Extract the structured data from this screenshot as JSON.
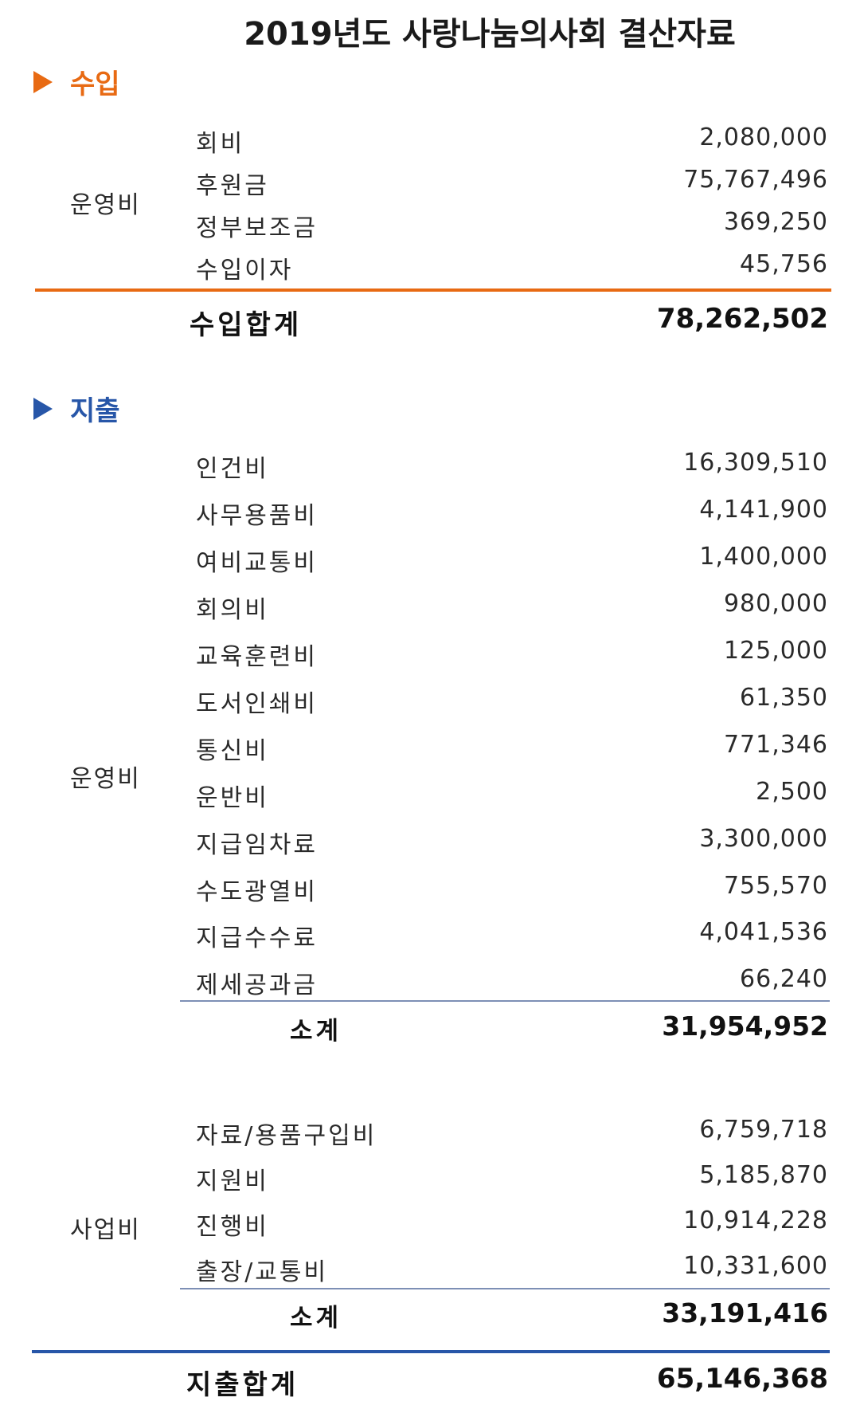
{
  "title": "2019년도 사랑나눔의사회 결산자료",
  "income": {
    "heading": "수입",
    "groups": [
      {
        "label": "운영비",
        "items": [
          {
            "name": "회비",
            "value": "2,080,000"
          },
          {
            "name": "후원금",
            "value": "75,767,496"
          },
          {
            "name": "정부보조금",
            "value": "369,250"
          },
          {
            "name": "수입이자",
            "value": "45,756"
          }
        ]
      }
    ],
    "total_label": "수입합계",
    "total_value": "78,262,502"
  },
  "expense": {
    "heading": "지출",
    "groups": [
      {
        "label": "운영비",
        "items": [
          {
            "name": "인건비",
            "value": "16,309,510"
          },
          {
            "name": "사무용품비",
            "value": "4,141,900"
          },
          {
            "name": "여비교통비",
            "value": "1,400,000"
          },
          {
            "name": "회의비",
            "value": "980,000"
          },
          {
            "name": "교육훈련비",
            "value": "125,000"
          },
          {
            "name": "도서인쇄비",
            "value": "61,350"
          },
          {
            "name": "통신비",
            "value": "771,346"
          },
          {
            "name": "운반비",
            "value": "2,500"
          },
          {
            "name": "지급임차료",
            "value": "3,300,000"
          },
          {
            "name": "수도광열비",
            "value": "755,570"
          },
          {
            "name": "지급수수료",
            "value": "4,041,536"
          },
          {
            "name": "제세공과금",
            "value": "66,240"
          }
        ],
        "subtotal_label": "소계",
        "subtotal_value": "31,954,952"
      },
      {
        "label": "사업비",
        "items": [
          {
            "name": "자료/용품구입비",
            "value": "6,759,718"
          },
          {
            "name": "지원비",
            "value": "5,185,870"
          },
          {
            "name": "진행비",
            "value": "10,914,228"
          },
          {
            "name": "출장/교통비",
            "value": "10,331,600"
          }
        ],
        "subtotal_label": "소계",
        "subtotal_value": "33,191,416"
      }
    ],
    "total_label": "지출합계",
    "total_value": "65,146,368"
  },
  "colors": {
    "income_accent": "#e86a13",
    "expense_accent": "#2756a8"
  }
}
